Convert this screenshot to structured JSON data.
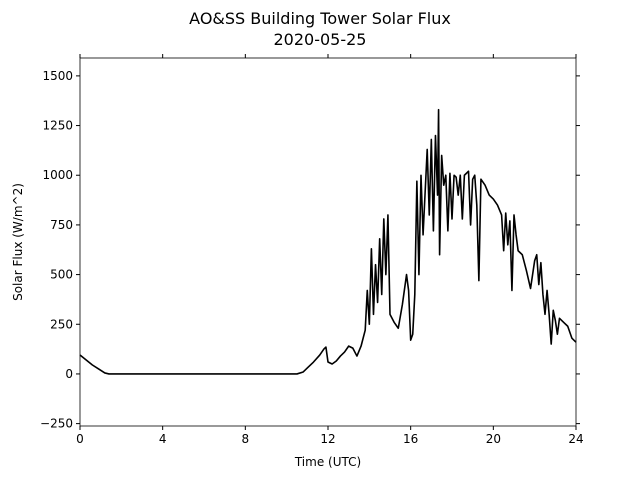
{
  "chart_data": {
    "type": "line",
    "title": "AO&SS Building Tower Solar Flux",
    "subtitle": "2020-05-25",
    "x_label": "Time (UTC)",
    "y_label": "Solar Flux (W/m^2)",
    "xlim": [
      0,
      24
    ],
    "xticks": [
      0,
      4,
      8,
      12,
      16,
      20,
      24
    ],
    "ylim": [
      -262,
      1590
    ],
    "yticks": [
      {
        "value": -250,
        "label": "−250"
      },
      0,
      250,
      500,
      750,
      1000,
      1250,
      1500
    ],
    "series": [
      {
        "color": "#000000",
        "x": [
          0,
          0.3,
          0.6,
          0.9,
          1.2,
          1.4,
          2,
          4,
          6,
          8,
          10,
          10.5,
          10.8,
          11,
          11.3,
          11.6,
          11.8,
          11.9,
          12.0,
          12.2,
          12.4,
          12.6,
          12.8,
          13.0,
          13.2,
          13.4,
          13.6,
          13.8,
          13.9,
          14.0,
          14.1,
          14.2,
          14.3,
          14.4,
          14.5,
          14.6,
          14.7,
          14.8,
          14.9,
          15.0,
          15.2,
          15.4,
          15.6,
          15.8,
          15.9,
          16.0,
          16.1,
          16.2,
          16.3,
          16.4,
          16.5,
          16.6,
          16.8,
          16.9,
          17.0,
          17.1,
          17.2,
          17.3,
          17.35,
          17.4,
          17.5,
          17.6,
          17.7,
          17.8,
          17.9,
          18.0,
          18.1,
          18.2,
          18.3,
          18.4,
          18.5,
          18.6,
          18.8,
          18.9,
          19.0,
          19.1,
          19.2,
          19.3,
          19.4,
          19.6,
          19.8,
          20.0,
          20.2,
          20.4,
          20.5,
          20.6,
          20.7,
          20.8,
          20.9,
          21.0,
          21.1,
          21.2,
          21.4,
          21.6,
          21.8,
          22.0,
          22.1,
          22.2,
          22.3,
          22.4,
          22.5,
          22.6,
          22.7,
          22.8,
          22.9,
          23.0,
          23.1,
          23.2,
          23.4,
          23.6,
          23.8,
          24.0
        ],
        "values": [
          95,
          70,
          45,
          25,
          5,
          0,
          0,
          0,
          0,
          0,
          0,
          0,
          10,
          30,
          60,
          95,
          125,
          135,
          60,
          50,
          65,
          90,
          110,
          140,
          130,
          90,
          140,
          220,
          420,
          250,
          630,
          300,
          550,
          360,
          680,
          400,
          780,
          500,
          800,
          300,
          260,
          230,
          350,
          500,
          420,
          170,
          200,
          400,
          970,
          500,
          1000,
          700,
          1130,
          800,
          1180,
          720,
          1200,
          900,
          1330,
          600,
          1100,
          950,
          1000,
          720,
          1010,
          780,
          1000,
          990,
          900,
          1000,
          780,
          1000,
          1020,
          750,
          980,
          1000,
          850,
          470,
          980,
          950,
          900,
          880,
          850,
          800,
          620,
          810,
          650,
          770,
          420,
          800,
          700,
          620,
          600,
          520,
          430,
          570,
          600,
          450,
          560,
          400,
          300,
          420,
          300,
          150,
          320,
          270,
          200,
          280,
          260,
          240,
          180,
          160
        ]
      }
    ]
  }
}
